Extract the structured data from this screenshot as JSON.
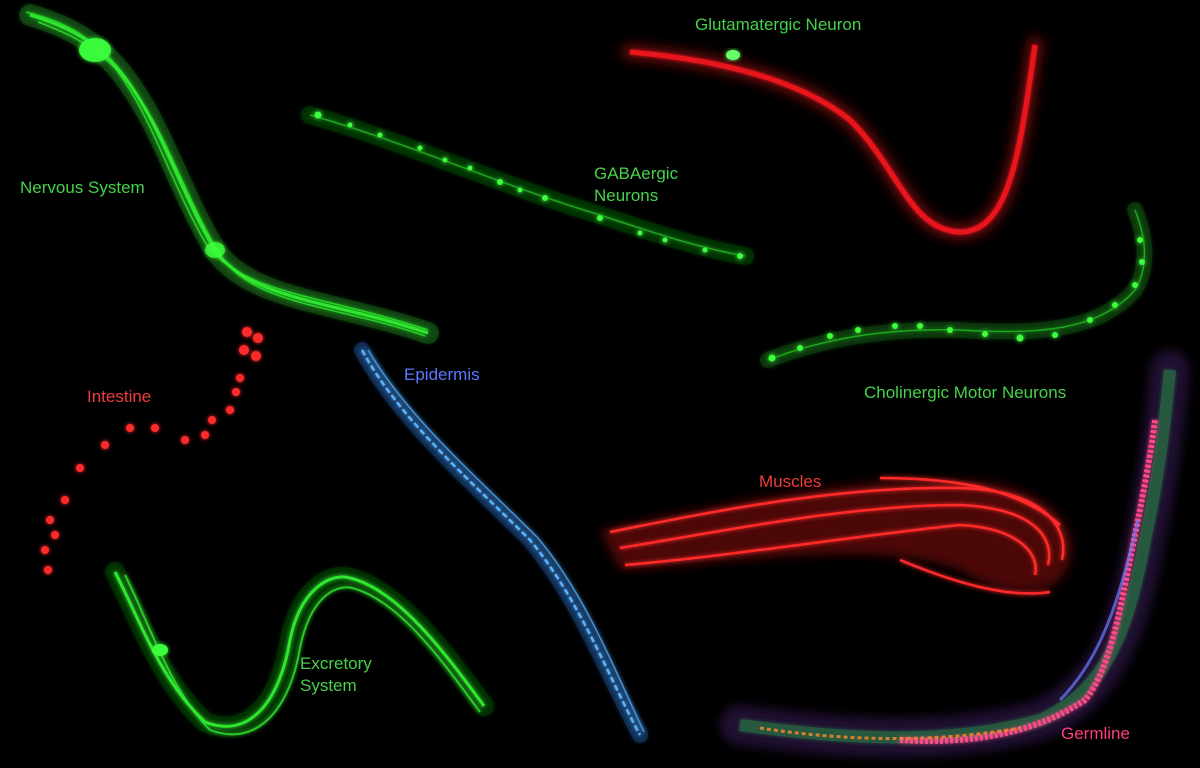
{
  "labels": {
    "nervous_system": "Nervous System",
    "gabaergic_line1": "GABAergic",
    "gabaergic_line2": "Neurons",
    "glutamatergic": "Glutamatergic Neuron",
    "cholinergic": "Cholinergic Motor Neurons",
    "intestine": "Intestine",
    "epidermis": "Epidermis",
    "muscles": "Muscles",
    "excretory_line1": "Excretory",
    "excretory_line2": "System",
    "germline": "Germline"
  },
  "colors": {
    "background": "#000000",
    "green_label": "#46d24a",
    "red_label": "#f03c3c",
    "blue_label": "#5a78ff",
    "pink_label": "#ff3c82",
    "green_signal": "#2ee82e",
    "red_signal": "#e8141e",
    "blue_signal": "#5ab4ff"
  }
}
